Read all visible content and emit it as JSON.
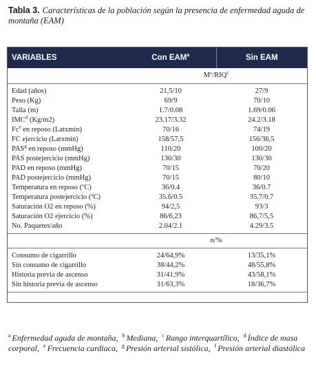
{
  "title": {
    "label": "Tabla 3.",
    "caption": "Características de la población según la presencia de enfermedad aguda de montaña (EAM)"
  },
  "table": {
    "header": [
      {
        "text": "VARIABLES"
      },
      {
        "text": "Con EAM",
        "sup": "a"
      },
      {
        "text": "Sin EAM"
      }
    ],
    "groups": [
      {
        "subheader": {
          "text": "Mº/RIQ",
          "sup": "c"
        },
        "rows": [
          [
            {
              "text": "Edad (años)"
            },
            {
              "text": "21,5/10"
            },
            {
              "text": "27/9"
            }
          ],
          [
            {
              "text": "Peso (Kg)"
            },
            {
              "text": "69/9"
            },
            {
              "text": "70/10"
            }
          ],
          [
            {
              "text": "Talla (m)"
            },
            {
              "text": "1.7/0.08"
            },
            {
              "text": "1.69/0.06"
            }
          ],
          [
            {
              "text": "IMC",
              "sup": "d",
              "tail": " (Kg/m2)"
            },
            {
              "text": "23.17/3.32"
            },
            {
              "text": "24.2/3.18"
            }
          ],
          [
            {
              "text": "Fc",
              "sup": "e",
              "tail": " en reposo (Latxmin)"
            },
            {
              "text": "70/16"
            },
            {
              "text": "74/19"
            }
          ],
          [
            {
              "text": "FC ejercicio (Latxmin)"
            },
            {
              "text": "158/57,5"
            },
            {
              "text": "156/36,5"
            }
          ],
          [
            {
              "text": "PAS",
              "sup": "g",
              "tail": " en reposo (mmHg)"
            },
            {
              "text": "110/20"
            },
            {
              "text": "100/20"
            }
          ],
          [
            {
              "text": "PAS postejercicio (mmHg)"
            },
            {
              "text": "130/30"
            },
            {
              "text": "130/30"
            }
          ],
          [
            {
              "text": "PAD en reposo (mmHg)"
            },
            {
              "text": "70/15"
            },
            {
              "text": "70/20"
            }
          ],
          [
            {
              "text": "PAD postejercicio (mmHg)"
            },
            {
              "text": "70/15"
            },
            {
              "text": "80/10"
            }
          ],
          [
            {
              "text": "Temperatura en reposo (ºC)"
            },
            {
              "text": "36/0.4"
            },
            {
              "text": "36/0.7"
            }
          ],
          [
            {
              "text": "Temperatura postejercicio (ºC)"
            },
            {
              "text": "35.6/0.5"
            },
            {
              "text": "35.7/0.7"
            }
          ],
          [
            {
              "text": "Saturación O2 en reposo (%)"
            },
            {
              "text": "94/2,5"
            },
            {
              "text": "93/3"
            }
          ],
          [
            {
              "text": "Saturación O2 ejercicio (%)"
            },
            {
              "text": "86/6,23"
            },
            {
              "text": "86,7/5,5"
            }
          ],
          [
            {
              "text": "No. Paquetes/año"
            },
            {
              "text": "2.04/2.1"
            },
            {
              "text": "4.29/3.5"
            }
          ]
        ]
      },
      {
        "subheader": {
          "text": "n/%"
        },
        "rows": [
          [
            {
              "text": "Consumo de cigarrillo"
            },
            {
              "text": "24/64,9%"
            },
            {
              "text": "13/35,1%"
            }
          ],
          [
            {
              "text": "Sin consumo de cigarrillo"
            },
            {
              "text": "38/44,2%"
            },
            {
              "text": "48/55,8%"
            }
          ],
          [
            {
              "text": "Historia previa de ascenso"
            },
            {
              "text": "31/41,9%"
            },
            {
              "text": "43/58,1%"
            }
          ],
          [
            {
              "text": "Sin historia previa de ascenso"
            },
            {
              "text": "31/63,3%"
            },
            {
              "text": "18/36,7%"
            }
          ]
        ]
      }
    ]
  },
  "footnotes": [
    {
      "mark": "a",
      "text": "Enfermedad aguda de montaña,"
    },
    {
      "mark": "b",
      "text": "Mediana,"
    },
    {
      "mark": "c",
      "text": "Rango interquartílico,"
    },
    {
      "mark": "d",
      "text": "Índice de masa corporal,"
    },
    {
      "mark": "e",
      "text": "Frecuencia cardiaca,"
    },
    {
      "mark": "g",
      "text": "Presión arterial sistólica,"
    },
    {
      "mark": "f",
      "text": "Presión arterial diastólica"
    }
  ]
}
